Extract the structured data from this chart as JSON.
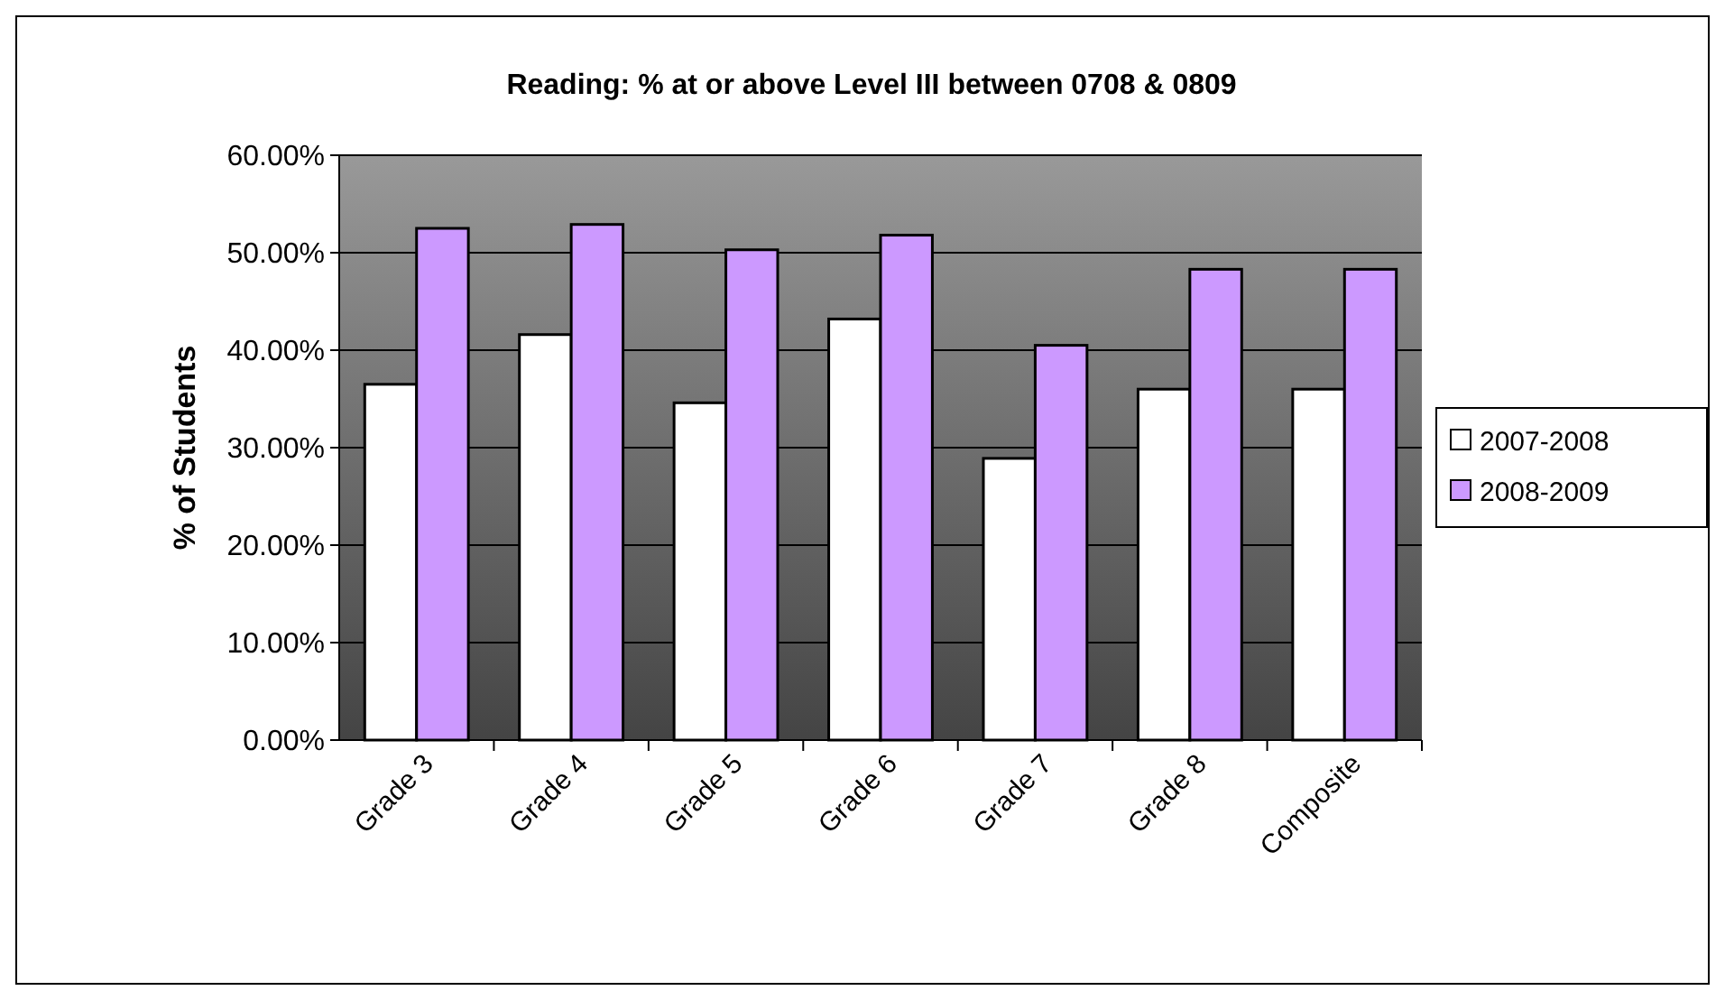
{
  "chart_data": {
    "type": "bar",
    "title": "Reading: % at or above Level III between 0708 & 0809",
    "ylabel": "% of Students",
    "categories": [
      "Grade 3",
      "Grade 4",
      "Grade 5",
      "Grade 6",
      "Grade 7",
      "Grade 8",
      "Composite"
    ],
    "series": [
      {
        "name": "2007-2008",
        "color": "#ffffff",
        "values": [
          36.5,
          41.6,
          34.6,
          43.2,
          28.9,
          36.0,
          36.0
        ]
      },
      {
        "name": "2008-2009",
        "color": "#cc99ff",
        "values": [
          52.5,
          52.9,
          50.3,
          51.8,
          40.5,
          48.3,
          48.3
        ]
      }
    ],
    "ylim": [
      0,
      60
    ],
    "yticks": [
      {
        "value": 0,
        "label": "0.00%"
      },
      {
        "value": 10,
        "label": "10.00%"
      },
      {
        "value": 20,
        "label": "20.00%"
      },
      {
        "value": 30,
        "label": "30.00%"
      },
      {
        "value": 40,
        "label": "40.00%"
      },
      {
        "value": 50,
        "label": "50.00%"
      },
      {
        "value": 60,
        "label": "60.00%"
      }
    ],
    "grid": "y",
    "legend": "right"
  }
}
